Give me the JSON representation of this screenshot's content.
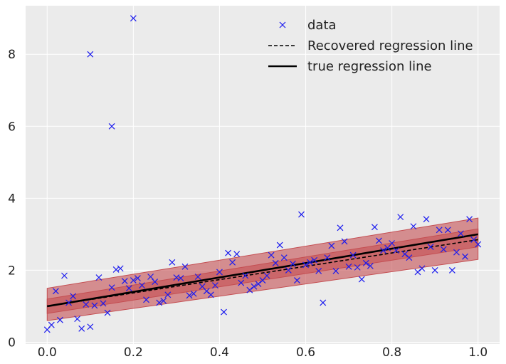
{
  "chart_data": {
    "type": "scatter",
    "title": "",
    "xlabel": "",
    "ylabel": "",
    "xlim": [
      -0.05,
      1.05
    ],
    "ylim": [
      -0.05,
      9.35
    ],
    "xticks": [
      0.0,
      0.2,
      0.4,
      0.6,
      0.8,
      1.0
    ],
    "xtick_labels": [
      "0.0",
      "0.2",
      "0.4",
      "0.6",
      "0.8",
      "1.0"
    ],
    "yticks": [
      0,
      2,
      4,
      6,
      8
    ],
    "ytick_labels": [
      "0",
      "2",
      "4",
      "6",
      "8"
    ],
    "grid": true,
    "background": "#ebebeb",
    "legend": {
      "placement": "top-right",
      "entries": [
        {
          "label": "data",
          "marker": "x",
          "color": "#1a1aee"
        },
        {
          "label": "Recovered regression line",
          "style": "dashed",
          "color": "#000000"
        },
        {
          "label": "true regression line",
          "style": "solid",
          "color": "#000000"
        }
      ]
    },
    "series": [
      {
        "name": "data",
        "kind": "scatter",
        "color": "#1a1aee",
        "marker": "x",
        "points": [
          [
            0.0,
            0.35
          ],
          [
            0.01,
            0.48
          ],
          [
            0.02,
            1.42
          ],
          [
            0.03,
            0.62
          ],
          [
            0.04,
            1.85
          ],
          [
            0.05,
            1.1
          ],
          [
            0.06,
            1.28
          ],
          [
            0.07,
            0.65
          ],
          [
            0.08,
            0.38
          ],
          [
            0.09,
            1.05
          ],
          [
            0.1,
            8.0
          ],
          [
            0.1,
            0.43
          ],
          [
            0.11,
            1.02
          ],
          [
            0.12,
            1.8
          ],
          [
            0.13,
            1.08
          ],
          [
            0.14,
            0.82
          ],
          [
            0.15,
            6.0
          ],
          [
            0.15,
            1.52
          ],
          [
            0.16,
            2.02
          ],
          [
            0.17,
            2.05
          ],
          [
            0.18,
            1.7
          ],
          [
            0.19,
            1.5
          ],
          [
            0.2,
            9.0
          ],
          [
            0.2,
            1.72
          ],
          [
            0.21,
            1.78
          ],
          [
            0.22,
            1.58
          ],
          [
            0.23,
            1.18
          ],
          [
            0.24,
            1.82
          ],
          [
            0.25,
            1.68
          ],
          [
            0.26,
            1.1
          ],
          [
            0.27,
            1.15
          ],
          [
            0.28,
            1.32
          ],
          [
            0.29,
            2.22
          ],
          [
            0.3,
            1.8
          ],
          [
            0.31,
            1.78
          ],
          [
            0.32,
            2.1
          ],
          [
            0.33,
            1.3
          ],
          [
            0.34,
            1.35
          ],
          [
            0.35,
            1.82
          ],
          [
            0.36,
            1.55
          ],
          [
            0.37,
            1.42
          ],
          [
            0.38,
            1.32
          ],
          [
            0.39,
            1.58
          ],
          [
            0.4,
            1.95
          ],
          [
            0.41,
            0.84
          ],
          [
            0.42,
            2.48
          ],
          [
            0.43,
            2.22
          ],
          [
            0.44,
            2.45
          ],
          [
            0.45,
            1.65
          ],
          [
            0.46,
            1.85
          ],
          [
            0.47,
            1.45
          ],
          [
            0.48,
            1.55
          ],
          [
            0.49,
            1.62
          ],
          [
            0.5,
            1.72
          ],
          [
            0.51,
            1.85
          ],
          [
            0.52,
            2.42
          ],
          [
            0.53,
            2.2
          ],
          [
            0.54,
            2.7
          ],
          [
            0.55,
            2.35
          ],
          [
            0.56,
            2.0
          ],
          [
            0.57,
            2.18
          ],
          [
            0.58,
            1.72
          ],
          [
            0.59,
            3.55
          ],
          [
            0.6,
            2.15
          ],
          [
            0.61,
            2.22
          ],
          [
            0.62,
            2.28
          ],
          [
            0.63,
            1.98
          ],
          [
            0.64,
            1.1
          ],
          [
            0.65,
            2.35
          ],
          [
            0.66,
            2.68
          ],
          [
            0.67,
            1.98
          ],
          [
            0.68,
            3.18
          ],
          [
            0.69,
            2.8
          ],
          [
            0.7,
            2.1
          ],
          [
            0.71,
            2.42
          ],
          [
            0.72,
            2.08
          ],
          [
            0.73,
            1.75
          ],
          [
            0.74,
            2.2
          ],
          [
            0.75,
            2.12
          ],
          [
            0.76,
            3.2
          ],
          [
            0.77,
            2.82
          ],
          [
            0.78,
            2.55
          ],
          [
            0.79,
            2.62
          ],
          [
            0.8,
            2.75
          ],
          [
            0.81,
            2.55
          ],
          [
            0.82,
            3.48
          ],
          [
            0.83,
            2.45
          ],
          [
            0.84,
            2.35
          ],
          [
            0.85,
            3.22
          ],
          [
            0.86,
            1.95
          ],
          [
            0.87,
            2.05
          ],
          [
            0.88,
            3.42
          ],
          [
            0.89,
            2.65
          ],
          [
            0.9,
            2.0
          ],
          [
            0.91,
            3.12
          ],
          [
            0.92,
            2.58
          ],
          [
            0.93,
            3.12
          ],
          [
            0.94,
            2.0
          ],
          [
            0.95,
            2.5
          ],
          [
            0.96,
            3.02
          ],
          [
            0.97,
            2.38
          ],
          [
            0.98,
            3.42
          ],
          [
            0.99,
            2.85
          ],
          [
            1.0,
            2.72
          ]
        ]
      },
      {
        "name": "Recovered regression line",
        "kind": "line",
        "style": "dashed",
        "color": "#000000",
        "x": [
          0.0,
          1.0
        ],
        "y": [
          1.0,
          2.85
        ],
        "bands": [
          {
            "lower": [
              0.6,
              2.3
            ],
            "upper": [
              1.5,
              3.45
            ],
            "color": "#c44e52",
            "opacity": 0.6
          },
          {
            "lower": [
              0.8,
              2.65
            ],
            "upper": [
              1.2,
              3.15
            ],
            "color": "#c44e52",
            "opacity": 0.6
          }
        ]
      },
      {
        "name": "true regression line",
        "kind": "line",
        "style": "solid",
        "color": "#000000",
        "x": [
          0.0,
          1.0
        ],
        "y": [
          1.0,
          3.0
        ]
      }
    ]
  }
}
